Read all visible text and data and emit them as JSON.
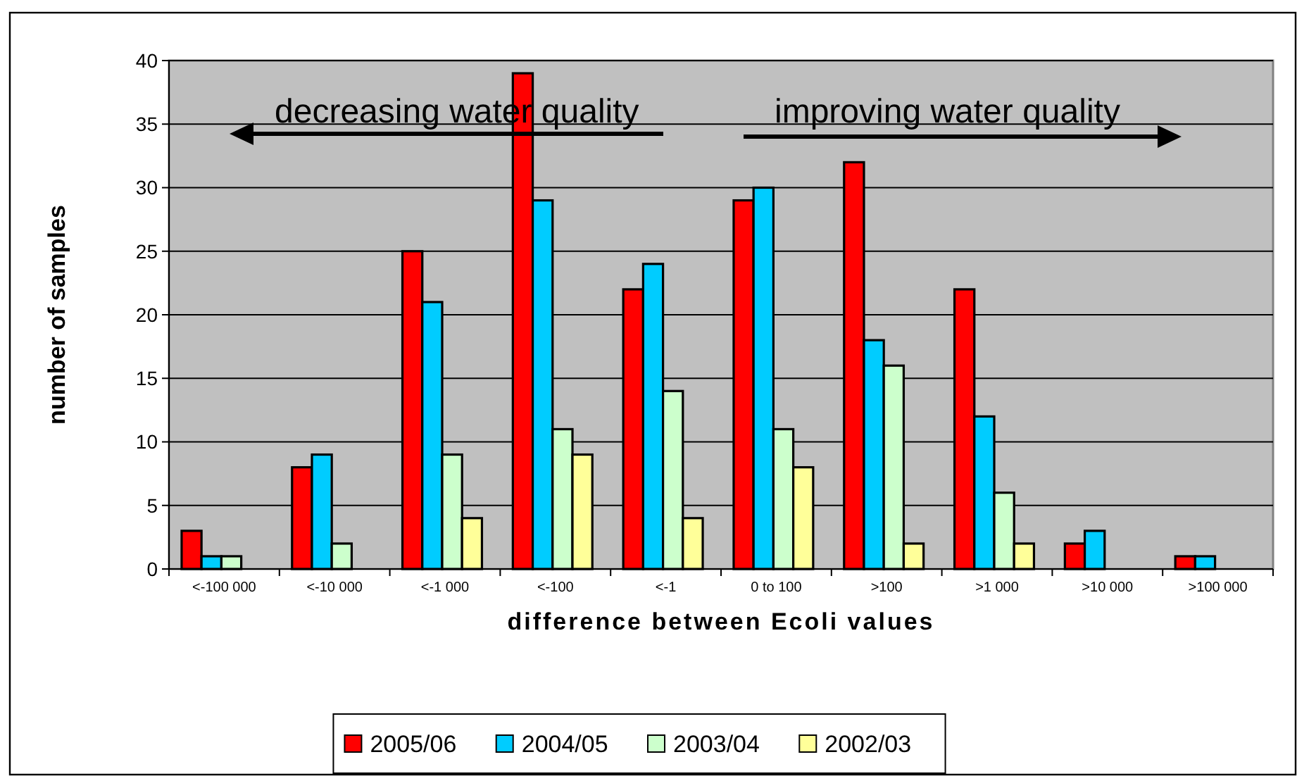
{
  "chart_data": {
    "type": "bar",
    "xlabel": "difference between Ecoli values",
    "ylabel": "number of samples",
    "categories": [
      "<-100 000",
      "<-10 000",
      "<-1 000",
      "<-100",
      "<-1",
      "0 to 100",
      ">100",
      ">1 000",
      ">10 000",
      ">100 000"
    ],
    "series": [
      {
        "name": "2005/06",
        "color": "#ff0000",
        "values": [
          3,
          8,
          25,
          39,
          22,
          29,
          32,
          22,
          2,
          1
        ]
      },
      {
        "name": "2004/05",
        "color": "#00ccff",
        "values": [
          1,
          9,
          21,
          29,
          24,
          30,
          18,
          12,
          3,
          1
        ]
      },
      {
        "name": "2003/04",
        "color": "#ccffcc",
        "values": [
          1,
          2,
          9,
          11,
          14,
          11,
          16,
          6,
          null,
          null
        ]
      },
      {
        "name": "2002/03",
        "color": "#ffff99",
        "values": [
          null,
          null,
          4,
          9,
          4,
          8,
          2,
          2,
          null,
          null
        ]
      }
    ],
    "ylim": [
      0,
      40
    ],
    "yticks": [
      0,
      5,
      10,
      15,
      20,
      25,
      30,
      35,
      40
    ],
    "grid": "y",
    "legend": "bottom",
    "annotations": [
      "decreasing water quality",
      "improving water quality"
    ]
  }
}
